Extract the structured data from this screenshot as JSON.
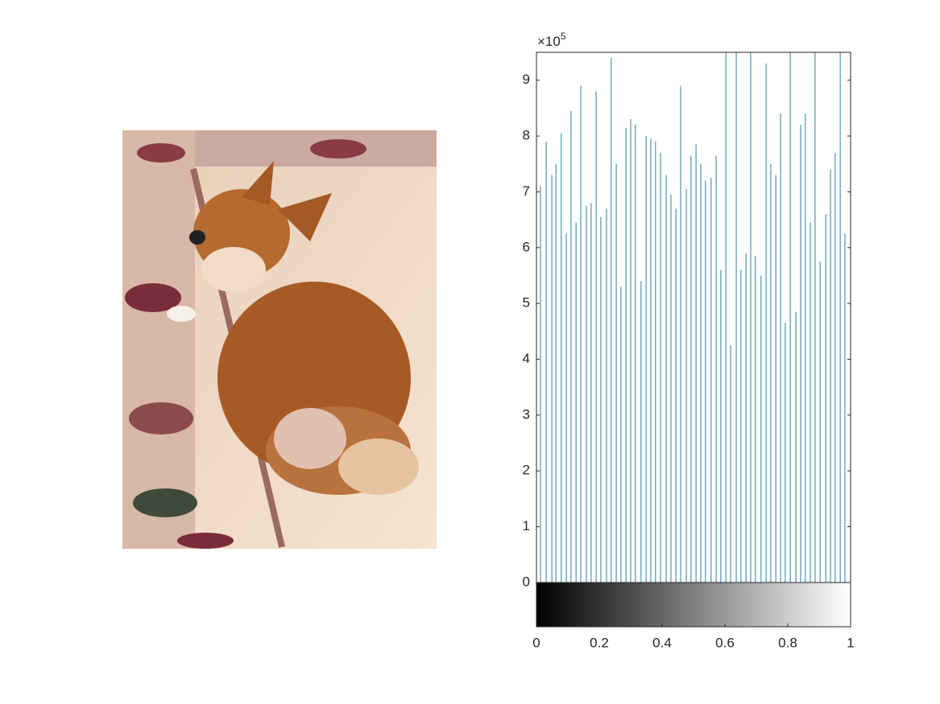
{
  "chart_data": {
    "type": "stem",
    "y_exponent_label": "×10",
    "y_exponent": "5",
    "x": [
      0.013,
      0.031,
      0.049,
      0.062,
      0.079,
      0.095,
      0.11,
      0.126,
      0.141,
      0.159,
      0.174,
      0.19,
      0.205,
      0.223,
      0.238,
      0.254,
      0.269,
      0.285,
      0.3,
      0.315,
      0.333,
      0.349,
      0.364,
      0.379,
      0.395,
      0.413,
      0.428,
      0.444,
      0.459,
      0.477,
      0.492,
      0.508,
      0.523,
      0.538,
      0.556,
      0.572,
      0.587,
      0.603,
      0.618,
      0.636,
      0.651,
      0.667,
      0.682,
      0.697,
      0.715,
      0.731,
      0.746,
      0.762,
      0.777,
      0.792,
      0.808,
      0.826,
      0.841,
      0.856,
      0.872,
      0.887,
      0.903,
      0.921,
      0.936,
      0.951,
      0.967,
      0.982
    ],
    "values": [
      7.1,
      7.9,
      7.3,
      7.5,
      8.05,
      6.25,
      8.45,
      6.45,
      8.9,
      6.75,
      6.8,
      8.8,
      6.55,
      6.7,
      9.4,
      7.5,
      5.3,
      8.15,
      8.3,
      8.2,
      5.4,
      8.0,
      7.95,
      7.9,
      7.7,
      7.3,
      6.95,
      6.7,
      8.9,
      7.05,
      7.65,
      7.85,
      7.5,
      7.2,
      7.25,
      7.65,
      5.6,
      9.8,
      4.25,
      9.8,
      5.6,
      5.9,
      9.8,
      5.85,
      5.5,
      9.3,
      7.5,
      7.3,
      8.4,
      4.65,
      9.8,
      4.85,
      8.2,
      8.4,
      6.45,
      9.8,
      5.75,
      6.6,
      7.4,
      7.7,
      9.8,
      6.25
    ],
    "color": "#2c7f9e",
    "xlim": [
      0,
      1
    ],
    "xticks": [
      0,
      0.2,
      0.4,
      0.6,
      0.8,
      1
    ],
    "ylim": [
      0,
      9.5
    ],
    "yticks": [
      0,
      1,
      2,
      3,
      4,
      5,
      6,
      7,
      8,
      9
    ],
    "colorbar": [
      "#000000",
      "#ffffff"
    ]
  }
}
